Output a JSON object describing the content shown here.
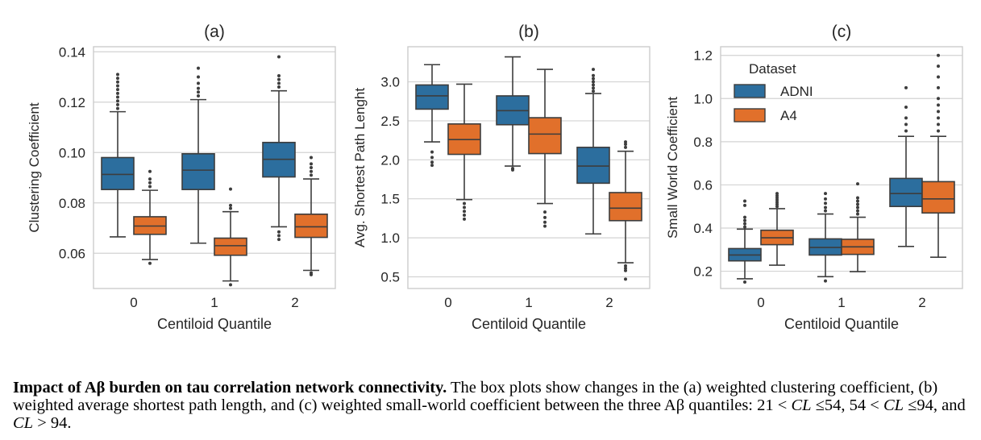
{
  "legend": {
    "title": "Dataset",
    "items": [
      {
        "name": "ADNI",
        "color": "#2c6e9e"
      },
      {
        "name": "A4",
        "color": "#e1702b"
      }
    ],
    "placement": "top-left of panel (c)"
  },
  "caption": {
    "bold": "Impact of Aβ  burden on tau correlation network connectivity.",
    "p1": " The box plots show changes in the (a) weighted clustering coefficient, (b) weighted average shortest path length, and (c) weighted small-world coefficient between the three Aβ quantiles:  21 < ",
    "cl1": "CL",
    "p2": " ≤54, 54 < ",
    "cl2": "CL",
    "p3": " ≤94, and ",
    "cl3": "CL",
    "p4": " > 94."
  },
  "chart_data": [
    {
      "type": "box",
      "title": "(a)",
      "xlabel": "Centiloid Quantile",
      "ylabel": "Clustering Coefficient",
      "categories": [
        "0",
        "1",
        "2"
      ],
      "ylim": [
        0.046,
        0.142
      ],
      "yticks": [
        0.06,
        0.08,
        0.1,
        0.12,
        0.14
      ],
      "ytick_labels": [
        "0.06",
        "0.08",
        "0.10",
        "0.12",
        "0.14"
      ],
      "grid": true,
      "series": [
        {
          "name": "ADNI",
          "boxes": [
            {
              "wlo": 0.0665,
              "q1": 0.0853,
              "median": 0.0913,
              "q3": 0.098,
              "whi": 0.1162,
              "outliers": [
                0.1175,
                0.119,
                0.1205,
                0.122,
                0.1235,
                0.125,
                0.1265,
                0.128,
                0.1295,
                0.131
              ]
            },
            {
              "wlo": 0.064,
              "q1": 0.0853,
              "median": 0.093,
              "q3": 0.0995,
              "whi": 0.121,
              "outliers": [
                0.1225,
                0.124,
                0.1255,
                0.1275,
                0.13,
                0.1335
              ]
            },
            {
              "wlo": 0.0705,
              "q1": 0.0903,
              "median": 0.0973,
              "q3": 0.104,
              "whi": 0.1245,
              "outliers": [
                0.0685,
                0.067,
                0.0655,
                0.126,
                0.1275,
                0.129,
                0.1305,
                0.138
              ]
            }
          ]
        },
        {
          "name": "A4",
          "boxes": [
            {
              "wlo": 0.0575,
              "q1": 0.0675,
              "median": 0.0708,
              "q3": 0.0745,
              "whi": 0.085,
              "outliers": [
                0.056,
                0.0865,
                0.088,
                0.0895,
                0.0925
              ]
            },
            {
              "wlo": 0.049,
              "q1": 0.0592,
              "median": 0.063,
              "q3": 0.066,
              "whi": 0.0765,
              "outliers": [
                0.0475,
                0.0778,
                0.079,
                0.0855
              ]
            },
            {
              "wlo": 0.0532,
              "q1": 0.0663,
              "median": 0.0705,
              "q3": 0.0755,
              "whi": 0.0895,
              "outliers": [
                0.0522,
                0.0515,
                0.091,
                0.0925,
                0.094,
                0.0955,
                0.098
              ]
            }
          ]
        }
      ]
    },
    {
      "type": "box",
      "title": "(b)",
      "xlabel": "Centiloid Quantile",
      "ylabel": "Avg. Shortest Path Lenght",
      "categories": [
        "0",
        "1",
        "2"
      ],
      "ylim": [
        0.35,
        3.45
      ],
      "yticks": [
        0.5,
        1.0,
        1.5,
        2.0,
        2.5,
        3.0
      ],
      "ytick_labels": [
        "0.5",
        "1.0",
        "1.5",
        "2.0",
        "2.5",
        "3.0"
      ],
      "grid": true,
      "series": [
        {
          "name": "ADNI",
          "boxes": [
            {
              "wlo": 2.23,
              "q1": 2.65,
              "median": 2.82,
              "q3": 2.96,
              "whi": 3.22,
              "outliers": [
                2.1,
                2.03,
                1.97,
                1.93
              ]
            },
            {
              "wlo": 1.92,
              "q1": 2.45,
              "median": 2.63,
              "q3": 2.82,
              "whi": 3.32,
              "outliers": [
                1.89,
                1.87
              ]
            },
            {
              "wlo": 1.05,
              "q1": 1.7,
              "median": 1.92,
              "q3": 2.16,
              "whi": 2.85,
              "outliers": [
                2.88,
                2.92,
                2.96,
                3.0,
                3.04,
                3.08,
                3.16
              ]
            }
          ]
        },
        {
          "name": "A4",
          "boxes": [
            {
              "wlo": 1.49,
              "q1": 2.07,
              "median": 2.26,
              "q3": 2.46,
              "whi": 2.97,
              "outliers": [
                1.44,
                1.39,
                1.34,
                1.29,
                1.24
              ]
            },
            {
              "wlo": 1.44,
              "q1": 2.08,
              "median": 2.33,
              "q3": 2.54,
              "whi": 3.16,
              "outliers": [
                1.33,
                1.26,
                1.2,
                1.15
              ]
            },
            {
              "wlo": 0.68,
              "q1": 1.22,
              "median": 1.38,
              "q3": 1.58,
              "whi": 2.11,
              "outliers": [
                0.64,
                0.61,
                0.58,
                0.47,
                2.16,
                2.2,
                2.23
              ]
            }
          ]
        }
      ]
    },
    {
      "type": "box",
      "title": "(c)",
      "xlabel": "Centiloid Quantile",
      "ylabel": "Small World Coefficient",
      "categories": [
        "0",
        "1",
        "2"
      ],
      "ylim": [
        0.12,
        1.24
      ],
      "yticks": [
        0.2,
        0.4,
        0.6,
        0.8,
        1.0,
        1.2
      ],
      "ytick_labels": [
        "0.2",
        "0.4",
        "0.6",
        "0.8",
        "1.0",
        "1.2"
      ],
      "grid": true,
      "series": [
        {
          "name": "ADNI",
          "boxes": [
            {
              "wlo": 0.165,
              "q1": 0.248,
              "median": 0.275,
              "q3": 0.305,
              "whi": 0.395,
              "outliers": [
                0.15,
                0.405,
                0.42,
                0.435,
                0.45,
                0.505,
                0.525
              ]
            },
            {
              "wlo": 0.175,
              "q1": 0.275,
              "median": 0.31,
              "q3": 0.35,
              "whi": 0.465,
              "outliers": [
                0.155,
                0.48,
                0.495,
                0.515,
                0.535,
                0.56
              ]
            },
            {
              "wlo": 0.315,
              "q1": 0.5,
              "median": 0.56,
              "q3": 0.63,
              "whi": 0.825,
              "outliers": [
                0.85,
                0.88,
                0.91,
                0.96,
                1.05
              ]
            }
          ]
        },
        {
          "name": "A4",
          "boxes": [
            {
              "wlo": 0.228,
              "q1": 0.323,
              "median": 0.355,
              "q3": 0.39,
              "whi": 0.49,
              "outliers": [
                0.5,
                0.51,
                0.52,
                0.53,
                0.54,
                0.55,
                0.56
              ]
            },
            {
              "wlo": 0.198,
              "q1": 0.278,
              "median": 0.313,
              "q3": 0.348,
              "whi": 0.45,
              "outliers": [
                0.465,
                0.48,
                0.495,
                0.51,
                0.525,
                0.54,
                0.605
              ]
            },
            {
              "wlo": 0.265,
              "q1": 0.47,
              "median": 0.535,
              "q3": 0.615,
              "whi": 0.825,
              "outliers": [
                0.85,
                0.88,
                0.91,
                0.94,
                0.97,
                1.0,
                1.05,
                1.1,
                1.15,
                1.2
              ]
            }
          ]
        }
      ]
    }
  ]
}
